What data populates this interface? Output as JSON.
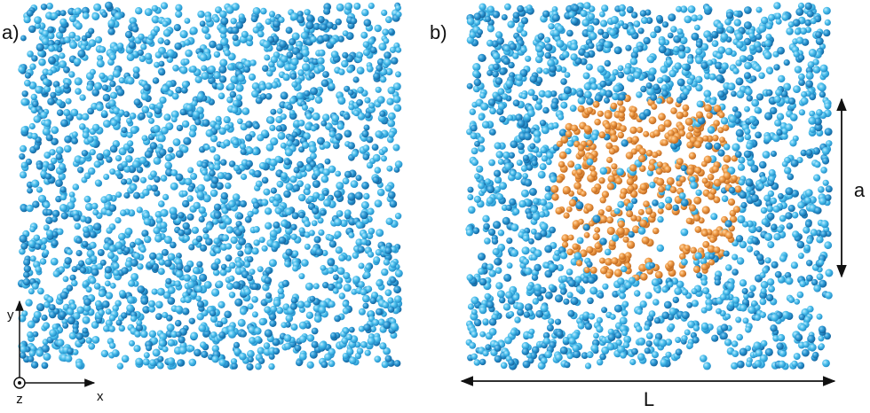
{
  "panels": [
    {
      "label": "a)"
    },
    {
      "label": "b)"
    }
  ],
  "axes": {
    "x": "x",
    "y": "y",
    "z": "z"
  },
  "dimensions": {
    "a": "a",
    "L": "L"
  }
}
